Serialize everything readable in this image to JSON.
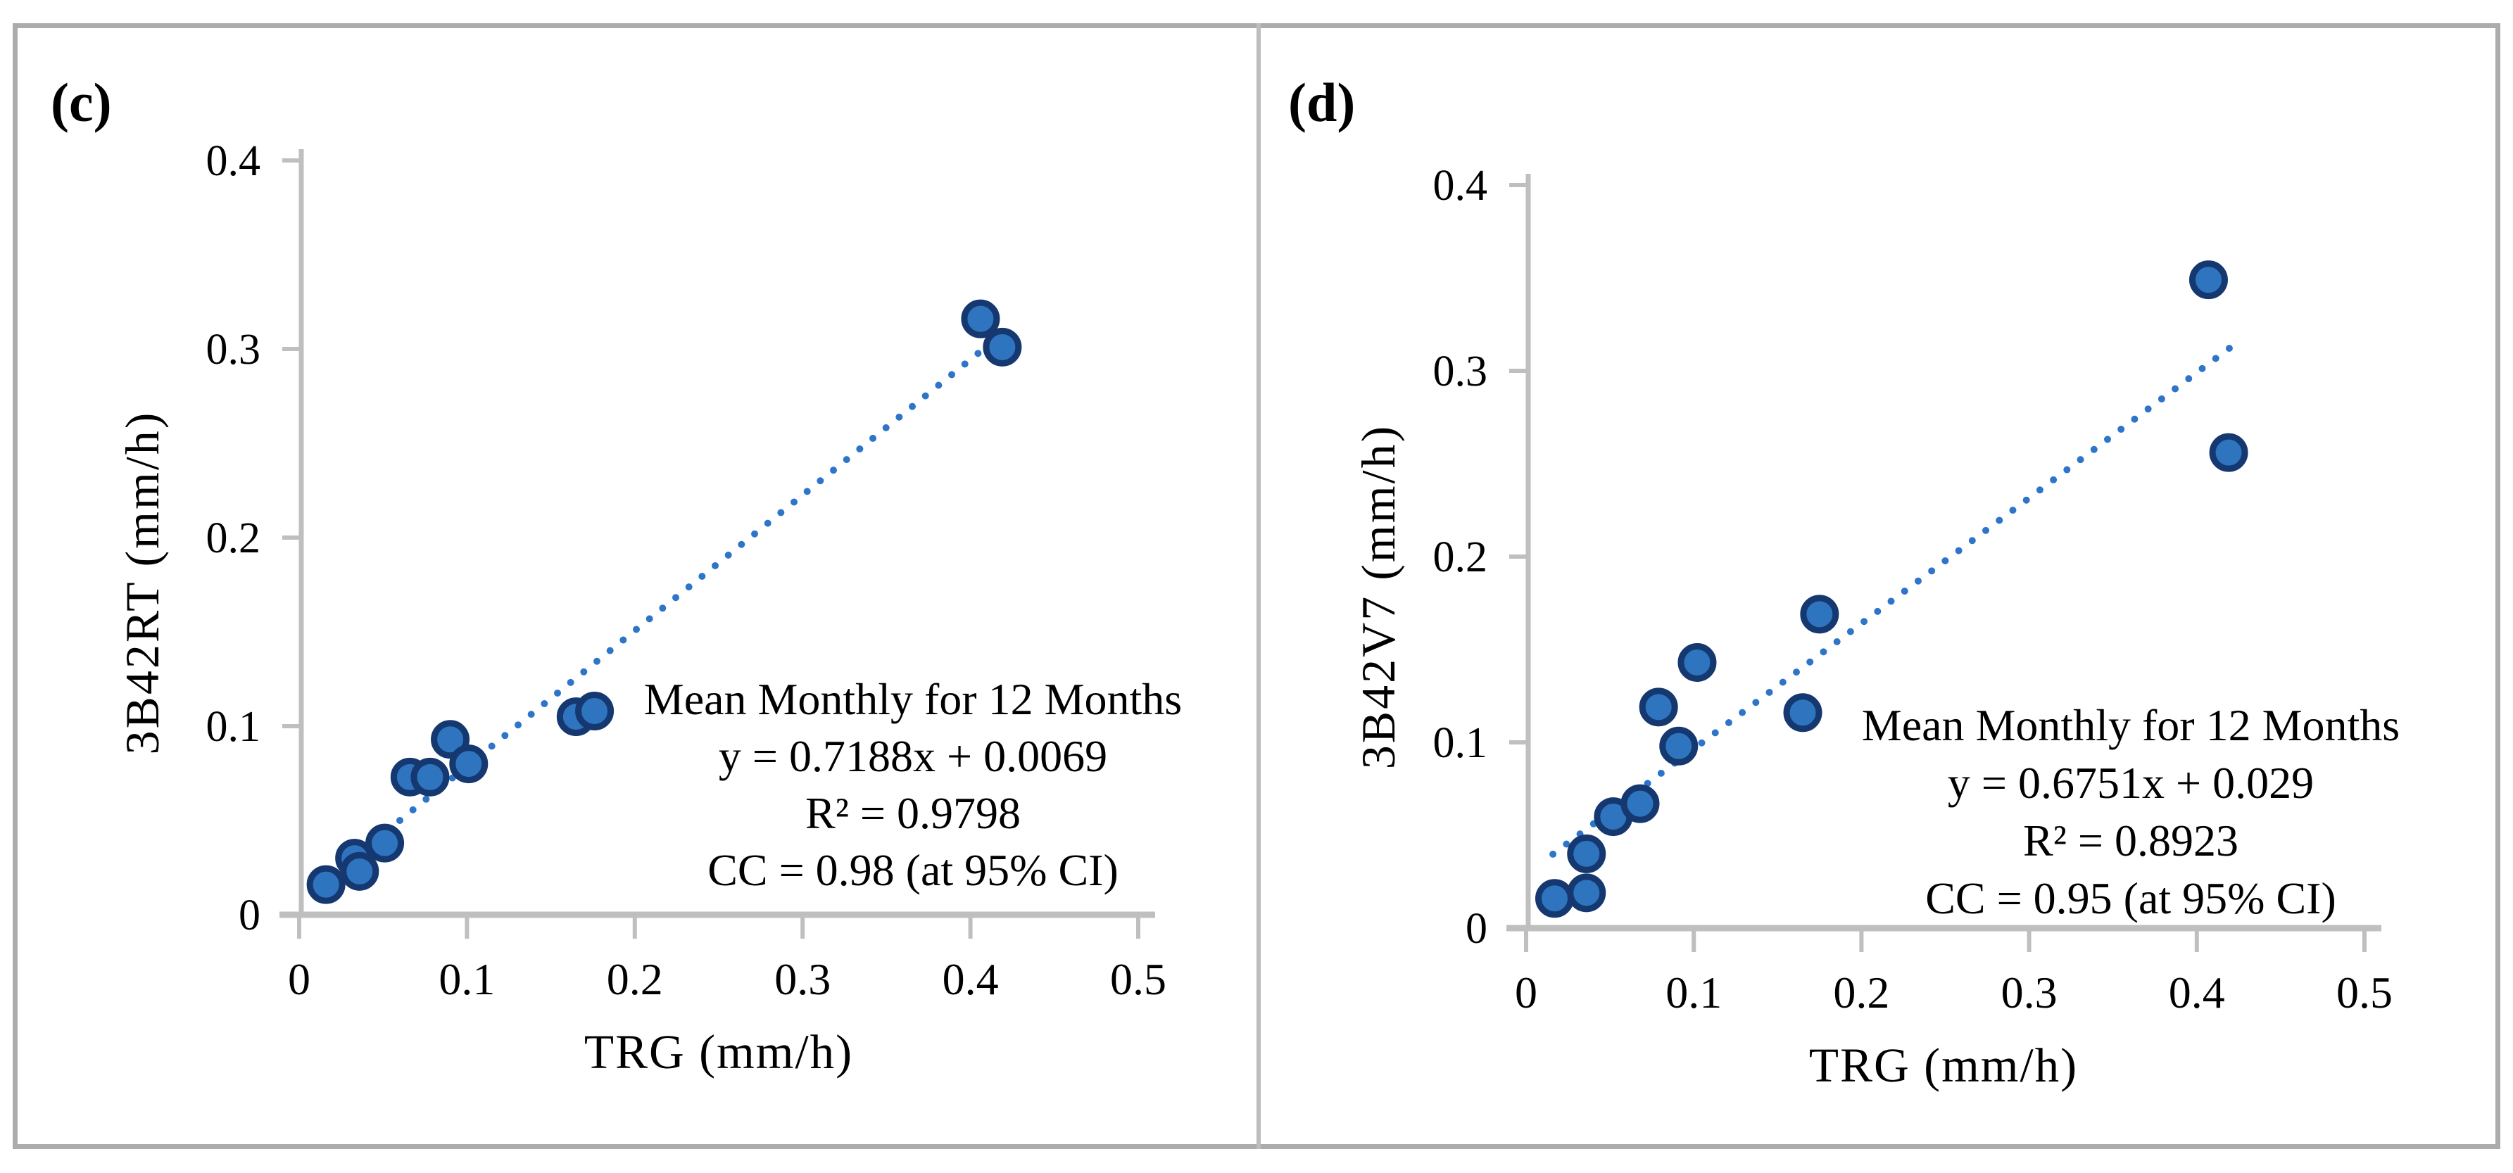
{
  "figure": {
    "border_color": "#ACACAC",
    "divider_color": "#BDBDBD",
    "background_color": "#ffffff",
    "axis_color": "#BFBFBF",
    "text_color": "#000000"
  },
  "chart_data": [
    {
      "type": "scatter",
      "panel_label": "(c)",
      "xlabel": "TRG (mm/h)",
      "ylabel": "3B42RT (mm/h)",
      "xlim": [
        0,
        0.5
      ],
      "ylim": [
        0,
        0.4
      ],
      "x_ticks": [
        0,
        0.1,
        0.2,
        0.3,
        0.4,
        0.5
      ],
      "x_tick_labels": [
        "0",
        "0.1",
        "0.2",
        "0.3",
        "0.4",
        "0.5"
      ],
      "y_ticks": [
        0,
        0.1,
        0.2,
        0.3,
        0.4
      ],
      "y_tick_labels": [
        "0",
        "0.1",
        "0.2",
        "0.3",
        "0.4"
      ],
      "grid": false,
      "legend": "none",
      "points": [
        [
          0.016,
          0.016
        ],
        [
          0.033,
          0.03
        ],
        [
          0.036,
          0.023
        ],
        [
          0.051,
          0.038
        ],
        [
          0.066,
          0.073
        ],
        [
          0.078,
          0.073
        ],
        [
          0.09,
          0.093
        ],
        [
          0.101,
          0.08
        ],
        [
          0.165,
          0.105
        ],
        [
          0.176,
          0.108
        ],
        [
          0.406,
          0.316
        ],
        [
          0.419,
          0.301
        ]
      ],
      "trendline": {
        "style": "dotted",
        "slope": 0.7188,
        "intercept": 0.0069,
        "x_start": 0.013,
        "x_end": 0.4255,
        "color": "#2E75C9"
      },
      "marker": {
        "fill": "#2E74BE",
        "stroke": "#14386F"
      },
      "annotation_lines": [
        "Mean Monthly for 12 Months",
        "y = 0.7188x + 0.0069",
        "R² = 0.9798",
        "CC = 0.98 (at 95% CI)"
      ]
    },
    {
      "type": "scatter",
      "panel_label": "(d)",
      "xlabel": "TRG (mm/h)",
      "ylabel": "3B42V7 (mm/h)",
      "xlim": [
        0,
        0.5
      ],
      "ylim": [
        0,
        0.4
      ],
      "x_ticks": [
        0,
        0.1,
        0.2,
        0.3,
        0.4,
        0.5
      ],
      "x_tick_labels": [
        "0",
        "0.1",
        "0.2",
        "0.3",
        "0.4",
        "0.5"
      ],
      "y_ticks": [
        0,
        0.1,
        0.2,
        0.3,
        0.4
      ],
      "y_tick_labels": [
        "0",
        "0.1",
        "0.2",
        "0.3",
        "0.4"
      ],
      "grid": false,
      "legend": "none",
      "points": [
        [
          0.017,
          0.016
        ],
        [
          0.036,
          0.019
        ],
        [
          0.036,
          0.04
        ],
        [
          0.052,
          0.06
        ],
        [
          0.068,
          0.067
        ],
        [
          0.079,
          0.119
        ],
        [
          0.091,
          0.098
        ],
        [
          0.102,
          0.143
        ],
        [
          0.165,
          0.116
        ],
        [
          0.175,
          0.169
        ],
        [
          0.407,
          0.349
        ],
        [
          0.419,
          0.256
        ]
      ],
      "trendline": {
        "style": "dotted",
        "slope": 0.6751,
        "intercept": 0.029,
        "x_start": 0.016,
        "x_end": 0.424,
        "color": "#2E75C9"
      },
      "marker": {
        "fill": "#2E74BE",
        "stroke": "#14386F"
      },
      "annotation_lines": [
        "Mean Monthly for 12 Months",
        "y = 0.6751x + 0.029",
        "R² = 0.8923",
        "CC = 0.95 (at 95% CI)"
      ]
    }
  ]
}
